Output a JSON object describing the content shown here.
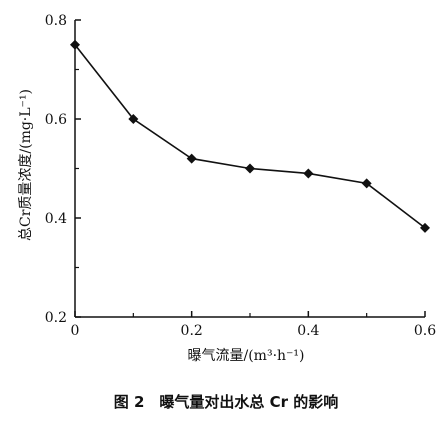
{
  "figure": {
    "caption": "图 2　曝气量对出水总 Cr 的影响"
  },
  "chart_data": {
    "type": "line",
    "title": "",
    "xlabel": "曝气流量/(m³·h⁻¹)",
    "ylabel": "总Cr质量浓度/(mg·L⁻¹)",
    "xlim": [
      0,
      0.6
    ],
    "ylim": [
      0.2,
      0.8
    ],
    "x_ticks": [
      "0",
      "0.2",
      "0.4",
      "0.6"
    ],
    "y_ticks": [
      "0.2",
      "0.4",
      "0.6",
      "0.8"
    ],
    "grid": false,
    "marker": "diamond",
    "series": [
      {
        "x": [
          0,
          0.1,
          0.2,
          0.3,
          0.4,
          0.5,
          0.6
        ],
        "values": [
          0.75,
          0.6,
          0.52,
          0.5,
          0.49,
          0.47,
          0.38
        ]
      }
    ]
  }
}
